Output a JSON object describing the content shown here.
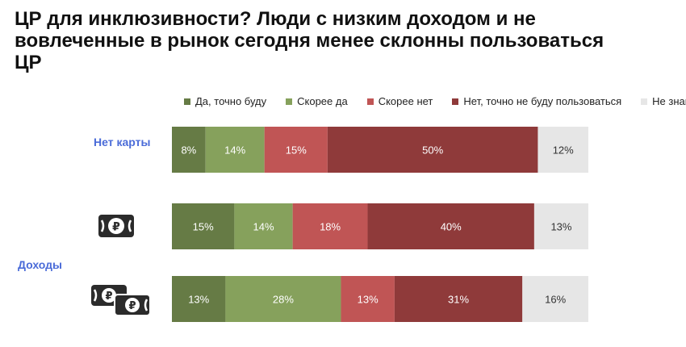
{
  "title": "ЦР для инклюзивности? Люди с низким доходом и не вовлеченные в рынок сегодня менее склонны пользоваться ЦР",
  "labels": {
    "no_card": "Нет карты",
    "income": "Доходы"
  },
  "icons": {
    "row2": "ruble-banknote-icon",
    "row3": "two-ruble-banknotes-icon"
  },
  "chart_data": {
    "type": "bar",
    "orientation": "horizontal-stacked-100",
    "categories": [
      "Нет карты",
      "Доходы: низкий",
      "Доходы: высокий"
    ],
    "series": [
      {
        "name": "Да, точно буду",
        "color": "#667b45",
        "values": [
          8,
          15,
          13
        ]
      },
      {
        "name": "Скорее да",
        "color": "#86a15c",
        "values": [
          14,
          14,
          28
        ]
      },
      {
        "name": "Скорее нет",
        "color": "#c05555",
        "values": [
          15,
          18,
          13
        ]
      },
      {
        "name": "Нет, точно не буду пользоваться",
        "color": "#8f3a3a",
        "values": [
          50,
          40,
          31
        ]
      },
      {
        "name": "Не знаю",
        "color": "#e6e6e6",
        "values": [
          12,
          13,
          16
        ]
      }
    ],
    "value_suffix": "%",
    "xlim": [
      0,
      100
    ],
    "legend_position": "top"
  }
}
